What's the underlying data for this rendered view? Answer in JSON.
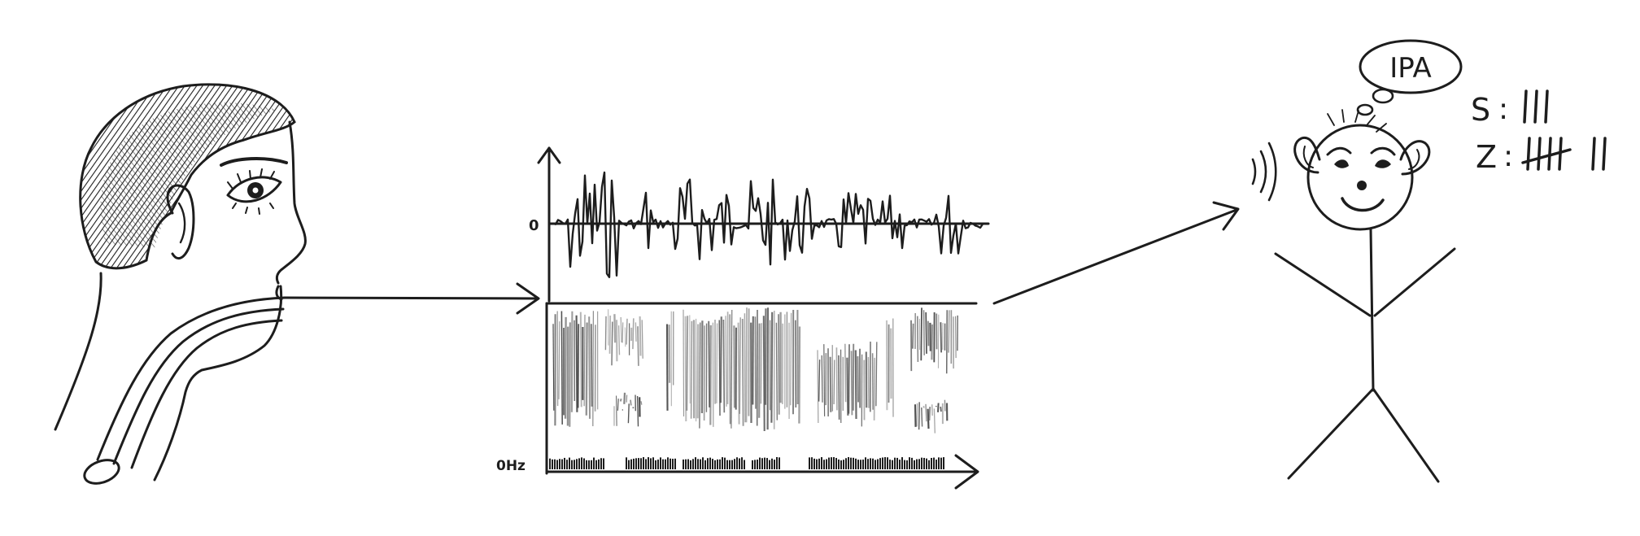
{
  "waveform": {
    "zero_label": "0"
  },
  "spectrogram": {
    "baseline_label": "0Hz"
  },
  "thought_bubble": {
    "text": "IPA"
  },
  "tallies": [
    {
      "label": "S",
      "separator": ":",
      "count": 3
    },
    {
      "label": "Z",
      "separator": ":",
      "count": 7
    }
  ],
  "colors": {
    "ink": "#1d1d1d",
    "paper": "#ffffff",
    "spectro_gray": "#6e6e6e"
  }
}
